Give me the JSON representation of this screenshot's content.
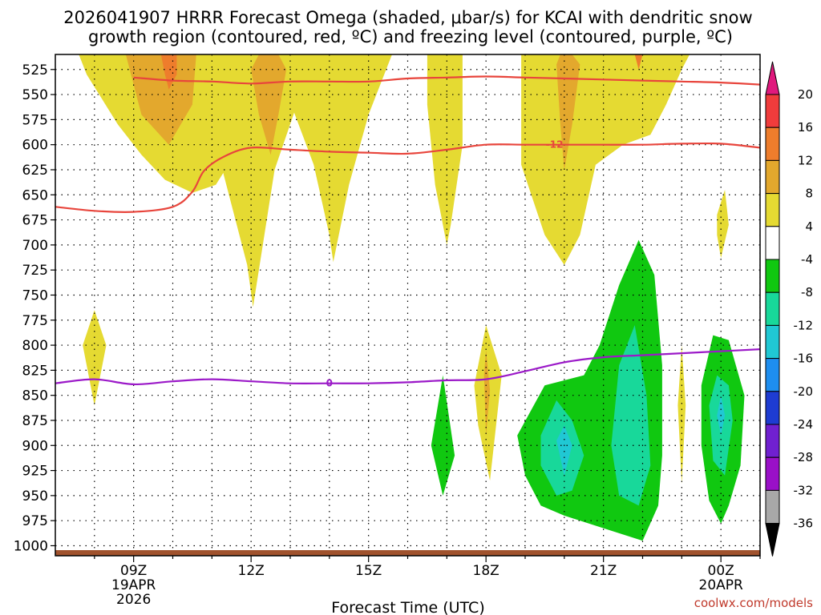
{
  "chart_data": {
    "type": "time-height",
    "title_line1": "2026041907 HRRR Forecast Omega (shaded, μbar/s) for KCAI with dendritic snow",
    "title_line2": "growth region (contoured, red, ºC) and freezing level (contoured, purple, ºC)",
    "xlabel": "Forecast Time (UTC)",
    "credit": "coolwx.com/models",
    "x_range_hours": [
      7,
      25
    ],
    "y_range_hpa": [
      510,
      1010
    ],
    "pressure_ticks": [
      525,
      550,
      575,
      600,
      625,
      650,
      675,
      700,
      725,
      750,
      775,
      800,
      825,
      850,
      875,
      900,
      925,
      950,
      975,
      1000
    ],
    "x_ticks": [
      {
        "hour": 9,
        "labels": [
          "09Z",
          "19APR",
          "2026"
        ]
      },
      {
        "hour": 12,
        "labels": [
          "12Z"
        ]
      },
      {
        "hour": 15,
        "labels": [
          "15Z"
        ]
      },
      {
        "hour": 18,
        "labels": [
          "18Z"
        ]
      },
      {
        "hour": 21,
        "labels": [
          "21Z"
        ]
      },
      {
        "hour": 24,
        "labels": [
          "00Z",
          "20APR"
        ]
      }
    ],
    "colorbar": {
      "labels": [
        "20",
        "16",
        "12",
        "8",
        "4",
        "-4",
        "-8",
        "-12",
        "-16",
        "-20",
        "-24",
        "-28",
        "-32",
        "-36"
      ],
      "colors": [
        "#f03c3c",
        "#ee7d2c",
        "#e3a82d",
        "#e5da32",
        "#ffffff",
        "#10c810",
        "#18d89a",
        "#20c8d4",
        "#1e8ef0",
        "#1e3cd2",
        "#7020d0",
        "#9a10c8",
        "#a8a8a8"
      ],
      "top_arrow_color": "#e0197d",
      "bottom_arrow_color": "#000000"
    },
    "contour_labels": {
      "dendritic_minus12": "-12",
      "freezing_0": "0"
    },
    "colors": {
      "dendritic": "#e8453c",
      "freezing": "#9b19c8",
      "terrain": "#a0522d"
    },
    "series": [
      {
        "name": "dendritic growth top (°C isotherm, hPa)",
        "x": [
          9,
          10,
          11,
          12,
          13,
          14,
          15,
          16,
          17,
          18,
          19,
          20,
          21,
          22,
          23,
          24,
          25
        ],
        "values": [
          533,
          536,
          537,
          539,
          537,
          537,
          537,
          534,
          533,
          532,
          533,
          534,
          535,
          536,
          537,
          538,
          540
        ]
      },
      {
        "name": "-12 °C isotherm (hPa)",
        "x": [
          7,
          8,
          9,
          10,
          10.5,
          10.8,
          11.3,
          12,
          13,
          14,
          15,
          16,
          17,
          18,
          19,
          20,
          21,
          22,
          23,
          24,
          25
        ],
        "values": [
          662,
          666,
          667,
          662,
          647,
          626,
          612,
          603,
          605,
          607,
          608,
          609,
          605,
          600,
          600,
          600,
          600,
          600,
          599,
          599,
          603
        ]
      },
      {
        "name": "freezing level 0 °C (hPa)",
        "x": [
          7,
          8,
          9,
          10,
          11,
          12,
          13,
          14,
          15,
          16,
          17,
          18,
          19,
          20,
          21,
          22,
          23,
          24,
          25
        ],
        "values": [
          838,
          834,
          839,
          836,
          834,
          836,
          838,
          838,
          838,
          837,
          835,
          834,
          826,
          817,
          812,
          810,
          808,
          806,
          804
        ]
      }
    ],
    "omega_regions": [
      {
        "level": "4",
        "color": "#e5da32",
        "shape": [
          [
            7.6,
            510
          ],
          [
            7.8,
            530
          ],
          [
            8.2,
            555
          ],
          [
            8.6,
            580
          ],
          [
            9.2,
            610
          ],
          [
            9.8,
            635
          ],
          [
            10.5,
            648
          ],
          [
            11.1,
            640
          ],
          [
            11.5,
            615
          ],
          [
            11.2,
            565
          ],
          [
            11,
            510
          ]
        ]
      },
      {
        "level": "4",
        "color": "#e5da32",
        "shape": [
          [
            10.9,
            510
          ],
          [
            10.9,
            560
          ],
          [
            11.3,
            630
          ],
          [
            11.9,
            720
          ],
          [
            12.05,
            762
          ],
          [
            12.3,
            700
          ],
          [
            12.6,
            625
          ],
          [
            13.1,
            568
          ],
          [
            13.6,
            620
          ],
          [
            14,
            690
          ],
          [
            14.1,
            717
          ],
          [
            14.5,
            640
          ],
          [
            15,
            570
          ],
          [
            15.5,
            520
          ],
          [
            15.6,
            510
          ]
        ]
      },
      {
        "level": "4",
        "color": "#e5da32",
        "shape": [
          [
            16.5,
            510
          ],
          [
            16.5,
            560
          ],
          [
            16.7,
            640
          ],
          [
            17,
            700
          ],
          [
            17.1,
            680
          ],
          [
            17.4,
            600
          ],
          [
            17.4,
            510
          ]
        ]
      },
      {
        "level": "4",
        "color": "#e5da32",
        "shape": [
          [
            18.9,
            510
          ],
          [
            18.9,
            620
          ],
          [
            19.5,
            690
          ],
          [
            20,
            720
          ],
          [
            20.4,
            690
          ],
          [
            20.8,
            620
          ],
          [
            21.5,
            600
          ],
          [
            22.2,
            590
          ],
          [
            22.6,
            560
          ],
          [
            23,
            525
          ],
          [
            23.2,
            510
          ]
        ]
      },
      {
        "level": "4",
        "color": "#e5da32",
        "shape": [
          [
            23.9,
            670
          ],
          [
            24.1,
            645
          ],
          [
            24.2,
            680
          ],
          [
            24,
            713
          ],
          [
            23.9,
            690
          ]
        ]
      },
      {
        "level": "8",
        "color": "#e3a82d",
        "shape": [
          [
            8.8,
            510
          ],
          [
            9.2,
            570
          ],
          [
            9.9,
            600
          ],
          [
            10.5,
            560
          ],
          [
            10.6,
            510
          ]
        ]
      },
      {
        "level": "8",
        "color": "#e3a82d",
        "shape": [
          [
            12,
            525
          ],
          [
            12.2,
            570
          ],
          [
            12.5,
            610
          ],
          [
            12.7,
            570
          ],
          [
            12.9,
            525
          ],
          [
            12.7,
            510
          ],
          [
            12.2,
            510
          ]
        ]
      },
      {
        "level": "8",
        "color": "#e3a82d",
        "shape": [
          [
            19.8,
            520
          ],
          [
            19.9,
            580
          ],
          [
            20,
            625
          ],
          [
            20.2,
            580
          ],
          [
            20.4,
            520
          ],
          [
            20.2,
            510
          ],
          [
            19.9,
            510
          ]
        ]
      },
      {
        "level": "12",
        "color": "#ee7d2c",
        "shape": [
          [
            9.7,
            510
          ],
          [
            9.8,
            530
          ],
          [
            9.9,
            545
          ],
          [
            10.1,
            530
          ],
          [
            10.1,
            510
          ]
        ]
      },
      {
        "level": "12",
        "color": "#ee7d2c",
        "shape": [
          [
            21.8,
            510
          ],
          [
            21.9,
            525
          ],
          [
            22,
            510
          ]
        ]
      },
      {
        "level": "4",
        "color": "#e5da32",
        "shape": [
          [
            7.7,
            800
          ],
          [
            8,
            765
          ],
          [
            8.3,
            800
          ],
          [
            8,
            860
          ]
        ]
      },
      {
        "level": "4",
        "color": "#e5da32",
        "shape": [
          [
            17.7,
            840
          ],
          [
            18,
            780
          ],
          [
            18.4,
            830
          ],
          [
            18.1,
            935
          ],
          [
            17.8,
            880
          ]
        ]
      },
      {
        "level": "8",
        "color": "#e3a82d",
        "shape": [
          [
            17.95,
            830
          ],
          [
            18,
            805
          ],
          [
            18.1,
            845
          ],
          [
            18,
            890
          ]
        ]
      },
      {
        "level": "4",
        "color": "#e5da32",
        "shape": [
          [
            22.9,
            860
          ],
          [
            23,
            800
          ],
          [
            23.1,
            860
          ],
          [
            23,
            938
          ]
        ]
      },
      {
        "level": "-4",
        "color": "#10c810",
        "shape": [
          [
            16.6,
            900
          ],
          [
            16.9,
            830
          ],
          [
            17.2,
            910
          ],
          [
            16.9,
            950
          ]
        ]
      },
      {
        "level": "-4",
        "color": "#10c810",
        "shape": [
          [
            18.8,
            890
          ],
          [
            19.5,
            840
          ],
          [
            20.5,
            830
          ],
          [
            20.9,
            800
          ],
          [
            21.4,
            740
          ],
          [
            21.9,
            695
          ],
          [
            22.3,
            730
          ],
          [
            22.5,
            820
          ],
          [
            22.5,
            910
          ],
          [
            22.4,
            960
          ],
          [
            22,
            995
          ],
          [
            21.2,
            985
          ],
          [
            20,
            970
          ],
          [
            19.4,
            960
          ],
          [
            19,
            930
          ]
        ]
      },
      {
        "level": "-8",
        "color": "#18d89a",
        "shape": [
          [
            19.4,
            890
          ],
          [
            19.8,
            855
          ],
          [
            20.2,
            875
          ],
          [
            20.5,
            910
          ],
          [
            20.2,
            945
          ],
          [
            19.8,
            950
          ],
          [
            19.4,
            920
          ]
        ]
      },
      {
        "level": "-8",
        "color": "#18d89a",
        "shape": [
          [
            21.2,
            900
          ],
          [
            21.4,
            820
          ],
          [
            21.8,
            780
          ],
          [
            22.1,
            850
          ],
          [
            22.2,
            920
          ],
          [
            21.9,
            960
          ],
          [
            21.4,
            950
          ]
        ]
      },
      {
        "level": "-12",
        "color": "#20c8d4",
        "shape": [
          [
            19.8,
            895
          ],
          [
            20,
            880
          ],
          [
            20.2,
            900
          ],
          [
            20,
            930
          ]
        ]
      },
      {
        "level": "-4",
        "color": "#10c810",
        "shape": [
          [
            23.5,
            840
          ],
          [
            23.8,
            790
          ],
          [
            24.2,
            795
          ],
          [
            24.6,
            850
          ],
          [
            24.5,
            920
          ],
          [
            24.2,
            960
          ],
          [
            24,
            978
          ],
          [
            23.7,
            955
          ],
          [
            23.5,
            900
          ]
        ]
      },
      {
        "level": "-8",
        "color": "#18d89a",
        "shape": [
          [
            23.7,
            860
          ],
          [
            23.9,
            830
          ],
          [
            24.2,
            840
          ],
          [
            24.3,
            875
          ],
          [
            24.1,
            930
          ],
          [
            23.8,
            915
          ]
        ]
      },
      {
        "level": "-12",
        "color": "#20c8d4",
        "shape": [
          [
            23.9,
            870
          ],
          [
            24,
            850
          ],
          [
            24.1,
            870
          ],
          [
            24,
            890
          ]
        ]
      }
    ]
  }
}
